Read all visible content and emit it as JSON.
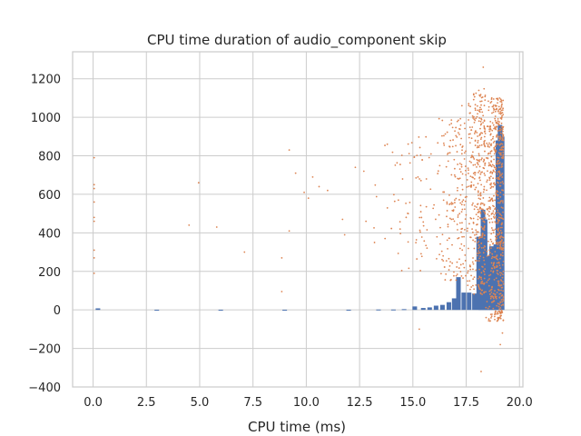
{
  "chart_data": {
    "type": "scatter",
    "title": "CPU time duration of audio_component skip",
    "xlabel": "CPU time (ms)",
    "ylabel": "",
    "xlim": [
      -0.96,
      20.16
    ],
    "ylim": [
      -400,
      1340
    ],
    "xticks": [
      0.0,
      2.5,
      5.0,
      7.5,
      10.0,
      12.5,
      15.0,
      17.5,
      20.0
    ],
    "xtick_labels": [
      "0.0",
      "2.5",
      "5.0",
      "7.5",
      "10.0",
      "12.5",
      "15.0",
      "17.5",
      "20.0"
    ],
    "yticks": [
      -400,
      -200,
      0,
      200,
      400,
      600,
      800,
      1000,
      1200
    ],
    "ytick_labels": [
      "−400",
      "−200",
      "0",
      "200",
      "400",
      "600",
      "800",
      "1000",
      "1200"
    ],
    "grid": true,
    "legend": "none",
    "colors": {
      "bars": "#4c72b0",
      "points": "#dd8452",
      "grid": "#cccccc",
      "background": "#ffffff"
    },
    "series": [
      {
        "type": "bar",
        "bin_width": 0.24,
        "values": [
          [
            0.24,
            8
          ],
          [
            3.0,
            1
          ],
          [
            6.0,
            1
          ],
          [
            9.0,
            1
          ],
          [
            12.0,
            1
          ],
          [
            13.4,
            2
          ],
          [
            14.1,
            2
          ],
          [
            14.6,
            4
          ],
          [
            15.1,
            18
          ],
          [
            15.5,
            10
          ],
          [
            15.8,
            13
          ],
          [
            16.1,
            22
          ],
          [
            16.4,
            26
          ],
          [
            16.7,
            40
          ],
          [
            16.95,
            60
          ],
          [
            17.15,
            170
          ],
          [
            17.4,
            90
          ],
          [
            17.65,
            90
          ],
          [
            17.9,
            85
          ],
          [
            18.1,
            380
          ],
          [
            18.2,
            260
          ],
          [
            18.3,
            520
          ],
          [
            18.4,
            470
          ],
          [
            18.5,
            280
          ],
          [
            18.6,
            200
          ],
          [
            18.7,
            330
          ],
          [
            18.8,
            320
          ],
          [
            18.9,
            340
          ],
          [
            19.0,
            880
          ],
          [
            19.1,
            960
          ],
          [
            19.2,
            900
          ]
        ]
      },
      {
        "type": "scatter",
        "points": [
          [
            0.05,
            790
          ],
          [
            0.05,
            650
          ],
          [
            0.05,
            630
          ],
          [
            0.05,
            560
          ],
          [
            0.05,
            480
          ],
          [
            0.05,
            460
          ],
          [
            0.05,
            310
          ],
          [
            0.05,
            270
          ],
          [
            0.05,
            190
          ],
          [
            4.5,
            440
          ],
          [
            4.95,
            660
          ],
          [
            5.8,
            430
          ],
          [
            7.1,
            300
          ],
          [
            8.85,
            95
          ],
          [
            8.85,
            270
          ],
          [
            9.2,
            410
          ],
          [
            9.2,
            830
          ],
          [
            9.5,
            710
          ],
          [
            9.9,
            610
          ],
          [
            10.1,
            580
          ],
          [
            10.3,
            690
          ],
          [
            10.6,
            640
          ],
          [
            11.0,
            620
          ],
          [
            11.7,
            470
          ],
          [
            11.8,
            390
          ],
          [
            12.3,
            740
          ],
          [
            12.7,
            720
          ],
          [
            12.8,
            460
          ],
          [
            13.2,
            350
          ],
          [
            13.8,
            860
          ],
          [
            14.4,
            420
          ],
          [
            15.3,
            -100
          ],
          [
            18.3,
            1260
          ],
          [
            18.2,
            -320
          ],
          [
            19.2,
            -120
          ],
          [
            19.1,
            -180
          ],
          [
            19.0,
            -20
          ],
          [
            18.9,
            1040
          ],
          [
            18.7,
            1100
          ],
          [
            17.3,
            1060
          ]
        ],
        "dense_clusters": [
          {
            "x_range": [
              13.0,
              16.0
            ],
            "y_range": [
              200,
              900
            ],
            "count": 70
          },
          {
            "x_range": [
              16.0,
              17.5
            ],
            "y_range": [
              150,
              1000
            ],
            "count": 180
          },
          {
            "x_range": [
              17.5,
              18.4
            ],
            "y_range": [
              80,
              1150
            ],
            "count": 350
          },
          {
            "x_range": [
              18.4,
              19.25
            ],
            "y_range": [
              -60,
              1100
            ],
            "count": 600
          }
        ]
      }
    ]
  }
}
